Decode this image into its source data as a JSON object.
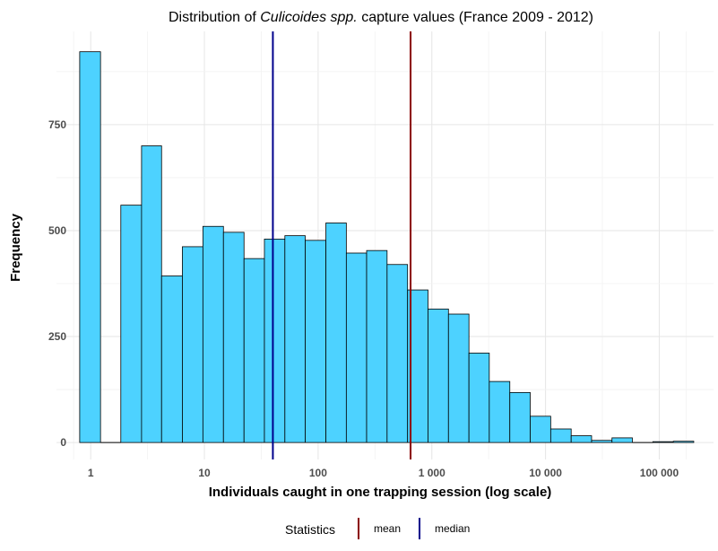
{
  "chart_data": {
    "type": "bar",
    "title_prefix": "Distribution of ",
    "title_italic": "Culicoides spp.",
    "title_suffix": " capture values (France 2009 - 2012)",
    "xlabel": "Individuals caught in one trapping session (log scale)",
    "ylabel": "Frequency",
    "x_scale": "log10",
    "xlim": [
      0.5,
      300000
    ],
    "ylim": [
      -40,
      970
    ],
    "x_ticks": [
      1,
      10,
      100,
      1000,
      10000,
      100000
    ],
    "x_tick_labels": [
      "1",
      "10",
      "100",
      "1 000",
      "10 000",
      "100 000"
    ],
    "y_ticks": [
      0,
      250,
      500,
      750
    ],
    "y_tick_labels": [
      "0",
      "250",
      "500",
      "750"
    ],
    "grid": true,
    "bars": [
      {
        "x0": 0.8,
        "x1": 1.22,
        "value": 922
      },
      {
        "x0": 1.22,
        "x1": 1.84,
        "value": 0
      },
      {
        "x0": 1.84,
        "x1": 2.8,
        "value": 560
      },
      {
        "x0": 2.8,
        "x1": 4.2,
        "value": 700
      },
      {
        "x0": 4.2,
        "x1": 6.4,
        "value": 393
      },
      {
        "x0": 6.4,
        "x1": 9.7,
        "value": 462
      },
      {
        "x0": 9.7,
        "x1": 14.7,
        "value": 510
      },
      {
        "x0": 14.7,
        "x1": 22.3,
        "value": 496
      },
      {
        "x0": 22.3,
        "x1": 33.7,
        "value": 434
      },
      {
        "x0": 33.7,
        "x1": 51,
        "value": 480
      },
      {
        "x0": 51,
        "x1": 77,
        "value": 488
      },
      {
        "x0": 77,
        "x1": 117,
        "value": 477
      },
      {
        "x0": 117,
        "x1": 177,
        "value": 518
      },
      {
        "x0": 177,
        "x1": 267,
        "value": 447
      },
      {
        "x0": 267,
        "x1": 404,
        "value": 453
      },
      {
        "x0": 404,
        "x1": 612,
        "value": 420
      },
      {
        "x0": 612,
        "x1": 925,
        "value": 360
      },
      {
        "x0": 925,
        "x1": 1400,
        "value": 315
      },
      {
        "x0": 1400,
        "x1": 2120,
        "value": 303
      },
      {
        "x0": 2120,
        "x1": 3200,
        "value": 211
      },
      {
        "x0": 3200,
        "x1": 4850,
        "value": 144
      },
      {
        "x0": 4850,
        "x1": 7330,
        "value": 118
      },
      {
        "x0": 7330,
        "x1": 11100,
        "value": 62
      },
      {
        "x0": 11100,
        "x1": 16800,
        "value": 32
      },
      {
        "x0": 16800,
        "x1": 25400,
        "value": 16
      },
      {
        "x0": 25400,
        "x1": 38400,
        "value": 5
      },
      {
        "x0": 38400,
        "x1": 58000,
        "value": 11
      },
      {
        "x0": 58000,
        "x1": 87800,
        "value": 0
      },
      {
        "x0": 87800,
        "x1": 133000,
        "value": 2
      },
      {
        "x0": 133000,
        "x1": 201000,
        "value": 3
      }
    ],
    "bar_fill": "#4DD2FF",
    "bar_stroke": "#000000",
    "reference_lines": [
      {
        "name": "mean",
        "x": 650,
        "color": "#8B0000"
      },
      {
        "name": "median",
        "x": 40,
        "color": "#00008B"
      }
    ],
    "legend": {
      "title": "Statistics",
      "position": "bottom",
      "items": [
        {
          "label": "mean",
          "color": "#8B0000"
        },
        {
          "label": "median",
          "color": "#00008B"
        }
      ]
    }
  }
}
